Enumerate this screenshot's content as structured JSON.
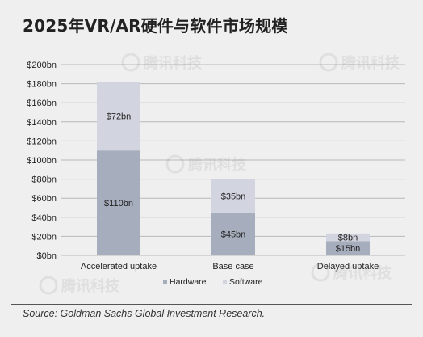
{
  "title": "2025年VR/AR硬件与软件市场规模",
  "source": "Source: Goldman Sachs Global Investment Research.",
  "watermark": "腾讯科技",
  "colors": {
    "hardware": "#a6adbc",
    "software": "#d2d5df",
    "grid": "#b8b8b8",
    "text": "#222222"
  },
  "chart_data": {
    "type": "bar",
    "stacked": true,
    "categories": [
      "Accelerated uptake",
      "Base case",
      "Delayed uptake"
    ],
    "series": [
      {
        "name": "Hardware",
        "values": [
          110,
          45,
          15
        ],
        "labels": [
          "$110bn",
          "$45bn",
          "$15bn"
        ]
      },
      {
        "name": "Software",
        "values": [
          72,
          35,
          8
        ],
        "labels": [
          "$72bn",
          "$35bn",
          "$8bn"
        ]
      }
    ],
    "ylim": [
      0,
      200
    ],
    "yticks": [
      0,
      20,
      40,
      60,
      80,
      100,
      120,
      140,
      160,
      180,
      200
    ],
    "ytick_labels": [
      "$0bn",
      "$20bn",
      "$40bn",
      "$60bn",
      "$80bn",
      "$100bn",
      "$120bn",
      "$140bn",
      "$160bn",
      "$180bn",
      "$200bn"
    ],
    "grid": true,
    "legend": "bottom-center"
  }
}
